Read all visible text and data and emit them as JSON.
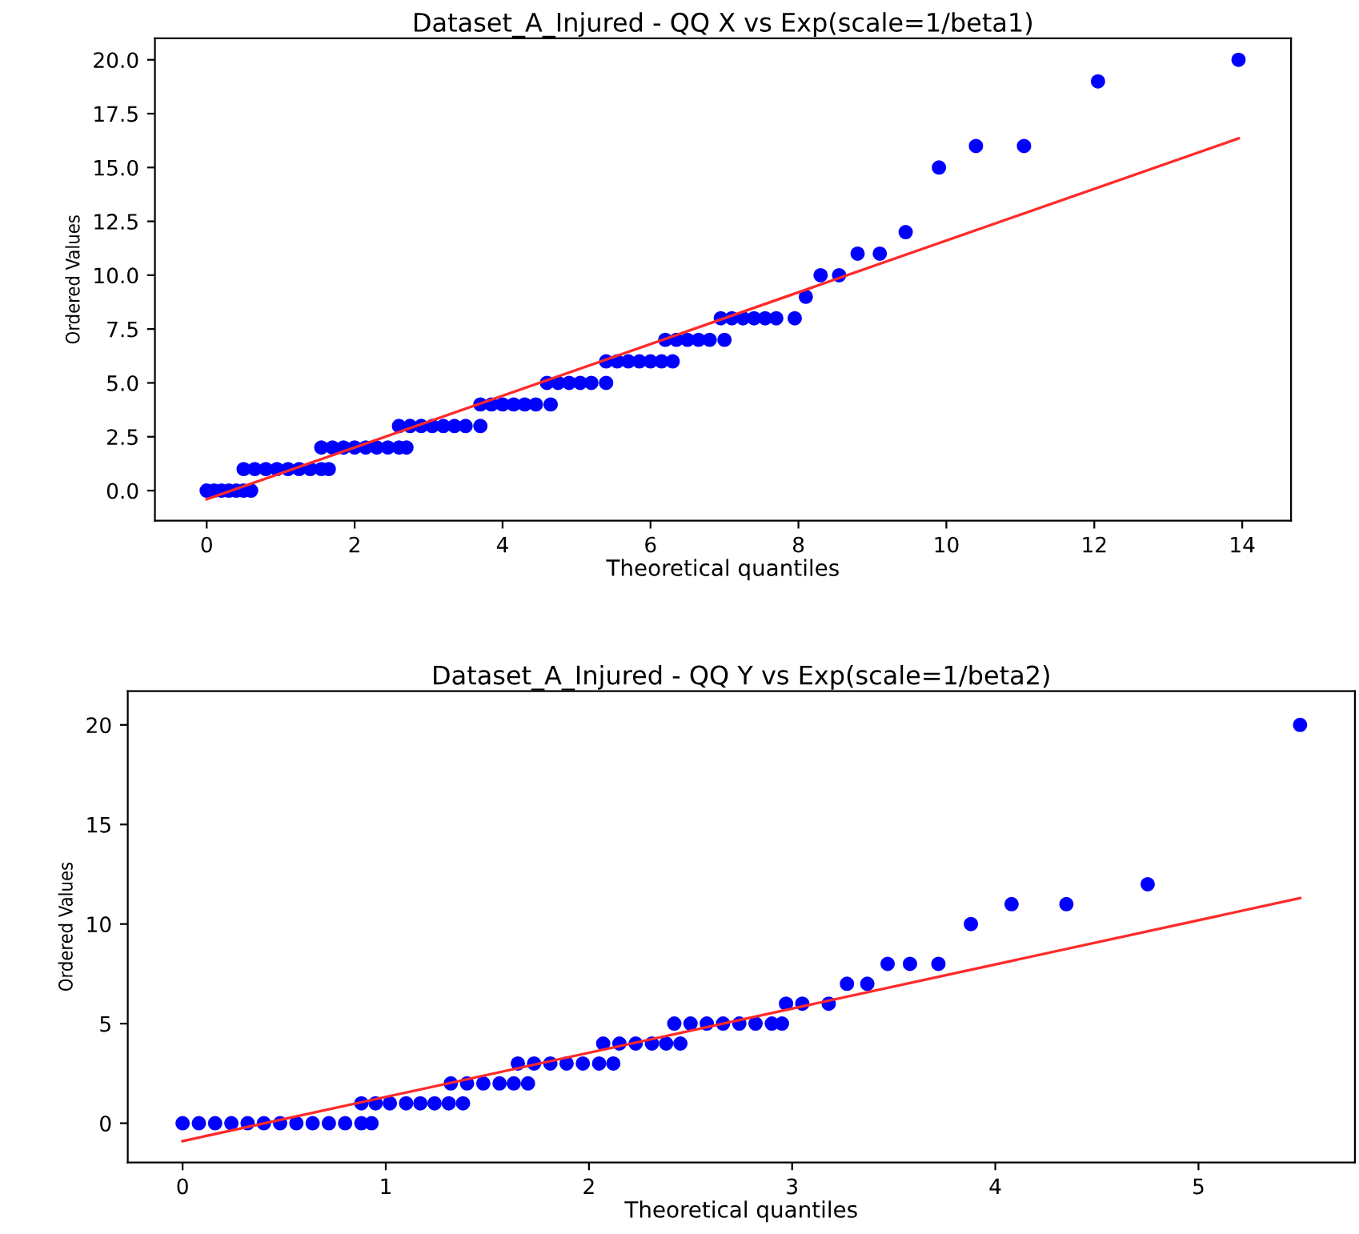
{
  "chart_data": [
    {
      "type": "scatter",
      "title": "Dataset_A_Injured - QQ X vs Exp(scale=1/beta1)",
      "xlabel": "Theoretical quantiles",
      "ylabel": "Ordered Values",
      "xlim": [
        -0.7,
        14.66
      ],
      "ylim": [
        -1.4,
        21.0
      ],
      "xticks": [
        0,
        2,
        4,
        6,
        8,
        10,
        12,
        14
      ],
      "yticks": [
        {
          "value": 0,
          "label": "0.0"
        },
        {
          "value": 2.5,
          "label": "2.5"
        },
        {
          "value": 5,
          "label": "5.0"
        },
        {
          "value": 7.5,
          "label": "7.5"
        },
        {
          "value": 10,
          "label": "10.0"
        },
        {
          "value": 12.5,
          "label": "12.5"
        },
        {
          "value": 15,
          "label": "15.0"
        },
        {
          "value": 17.5,
          "label": "17.5"
        },
        {
          "value": 20,
          "label": "20.0"
        }
      ],
      "grid": false,
      "series": [
        {
          "marker": "circle",
          "color": "#0000ff",
          "x": [
            0,
            0.1,
            0.2,
            0.3,
            0.4,
            0.5,
            0.6,
            0.5,
            0.65,
            0.8,
            0.95,
            1.1,
            1.25,
            1.4,
            1.55,
            1.65,
            1.55,
            1.7,
            1.85,
            2.0,
            2.15,
            2.3,
            2.45,
            2.6,
            2.7,
            2.6,
            2.75,
            2.9,
            3.05,
            3.2,
            3.35,
            3.5,
            3.7,
            3.7,
            3.85,
            4.0,
            4.15,
            4.3,
            4.45,
            4.65,
            4.6,
            4.75,
            4.9,
            5.05,
            5.2,
            5.4,
            5.4,
            5.55,
            5.7,
            5.85,
            6.0,
            6.15,
            6.3,
            6.2,
            6.35,
            6.5,
            6.65,
            6.8,
            7.0,
            6.95,
            7.1,
            7.25,
            7.4,
            7.55,
            7.7,
            7.95,
            8.1,
            8.3,
            8.55,
            8.8,
            9.1,
            9.45,
            9.9,
            10.4,
            11.05,
            12.05,
            13.95
          ],
          "values": [
            0,
            0,
            0,
            0,
            0,
            0,
            0,
            1,
            1,
            1,
            1,
            1,
            1,
            1,
            1,
            1,
            2,
            2,
            2,
            2,
            2,
            2,
            2,
            2,
            2,
            3,
            3,
            3,
            3,
            3,
            3,
            3,
            3,
            4,
            4,
            4,
            4,
            4,
            4,
            4,
            5,
            5,
            5,
            5,
            5,
            5,
            6,
            6,
            6,
            6,
            6,
            6,
            6,
            7,
            7,
            7,
            7,
            7,
            7,
            8,
            8,
            8,
            8,
            8,
            8,
            8,
            9,
            10,
            10,
            11,
            11,
            12,
            15,
            16,
            16,
            19,
            20
          ]
        },
        {
          "type": "line",
          "marker": "none",
          "line_style": "solid",
          "color": "#ff2a2a",
          "x": [
            0,
            13.95
          ],
          "values": [
            -0.4,
            16.35
          ]
        }
      ]
    },
    {
      "type": "scatter",
      "title": "Dataset_A_Injured - QQ Y vs Exp(scale=1/beta2)",
      "xlabel": "Theoretical quantiles",
      "ylabel": "Ordered Values",
      "xlim": [
        -0.27,
        5.77
      ],
      "ylim": [
        -1.97,
        21.7
      ],
      "xticks": [
        0,
        1,
        2,
        3,
        4,
        5
      ],
      "yticks": [
        0,
        5,
        10,
        15,
        20
      ],
      "grid": false,
      "series": [
        {
          "marker": "circle",
          "color": "#0000ff",
          "x": [
            0,
            0.08,
            0.16,
            0.24,
            0.32,
            0.4,
            0.48,
            0.56,
            0.64,
            0.72,
            0.8,
            0.88,
            0.93,
            0.88,
            0.95,
            1.02,
            1.1,
            1.17,
            1.24,
            1.31,
            1.38,
            1.32,
            1.4,
            1.48,
            1.56,
            1.63,
            1.7,
            1.65,
            1.73,
            1.81,
            1.89,
            1.97,
            2.05,
            2.12,
            2.07,
            2.15,
            2.23,
            2.31,
            2.38,
            2.45,
            2.42,
            2.5,
            2.58,
            2.66,
            2.74,
            2.82,
            2.9,
            2.95,
            2.97,
            3.05,
            3.18,
            3.27,
            3.37,
            3.47,
            3.58,
            3.72,
            3.88,
            4.08,
            4.35,
            4.75,
            5.5
          ],
          "values": [
            0,
            0,
            0,
            0,
            0,
            0,
            0,
            0,
            0,
            0,
            0,
            0,
            0,
            1,
            1,
            1,
            1,
            1,
            1,
            1,
            1,
            2,
            2,
            2,
            2,
            2,
            2,
            3,
            3,
            3,
            3,
            3,
            3,
            3,
            4,
            4,
            4,
            4,
            4,
            4,
            5,
            5,
            5,
            5,
            5,
            5,
            5,
            5,
            6,
            6,
            6,
            7,
            7,
            8,
            8,
            8,
            10,
            11,
            11,
            12,
            20
          ]
        },
        {
          "type": "line",
          "marker": "none",
          "line_style": "solid",
          "color": "#ff2a2a",
          "x": [
            0,
            5.5
          ],
          "values": [
            -0.9,
            11.3
          ]
        }
      ]
    }
  ]
}
